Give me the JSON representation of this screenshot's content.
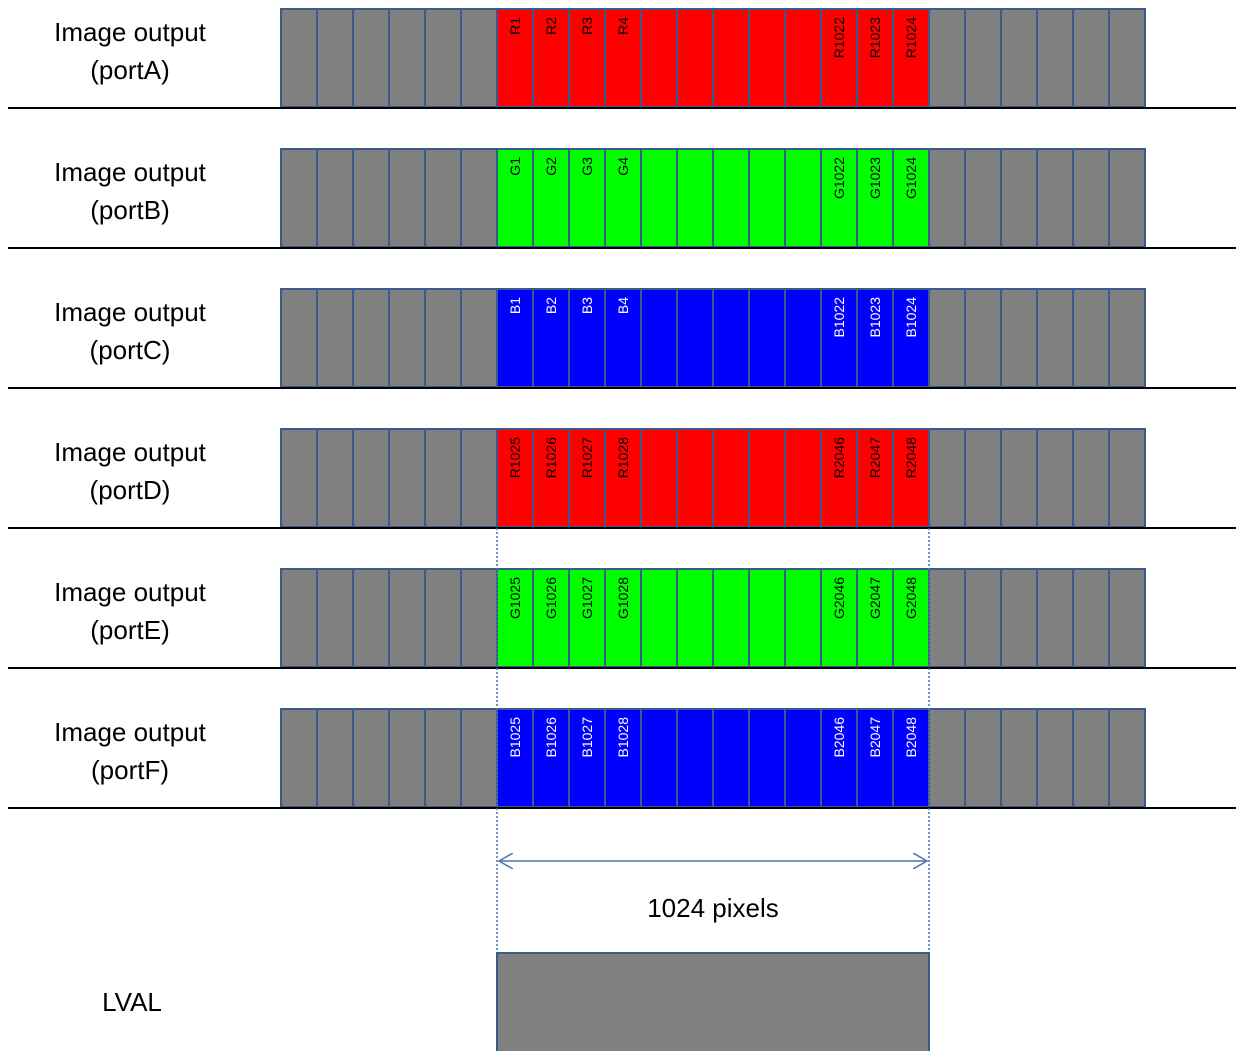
{
  "colors": {
    "inactive": "#808080",
    "red": "#ff0000",
    "green": "#00ff00",
    "blue": "#0000ff",
    "cell_border": "#3a5a8c",
    "guide": "#4f74a8",
    "arrow": "#4f74a8"
  },
  "ports": [
    {
      "label_line1": "Image output",
      "label_line2": "(portA)",
      "color": "red",
      "text_color": "#000000",
      "cell_labels": [
        "R1",
        "R2",
        "R3",
        "R4",
        "",
        "",
        "",
        "",
        "",
        "R1022",
        "R1023",
        "R1024"
      ]
    },
    {
      "label_line1": "Image output",
      "label_line2": "(portB)",
      "color": "green",
      "text_color": "#000000",
      "cell_labels": [
        "G1",
        "G2",
        "G3",
        "G4",
        "",
        "",
        "",
        "",
        "",
        "G1022",
        "G1023",
        "G1024"
      ]
    },
    {
      "label_line1": "Image output",
      "label_line2": "(portC)",
      "color": "blue",
      "text_color": "#ffffff",
      "cell_labels": [
        "B1",
        "B2",
        "B3",
        "B4",
        "",
        "",
        "",
        "",
        "",
        "B1022",
        "B1023",
        "B1024"
      ]
    },
    {
      "label_line1": "Image output",
      "label_line2": "(portD)",
      "color": "red",
      "text_color": "#000000",
      "cell_labels": [
        "R1025",
        "R1026",
        "R1027",
        "R1028",
        "",
        "",
        "",
        "",
        "",
        "R2046",
        "R2047",
        "R2048"
      ]
    },
    {
      "label_line1": "Image output",
      "label_line2": "(portE)",
      "color": "green",
      "text_color": "#000000",
      "cell_labels": [
        "G1025",
        "G1026",
        "G1027",
        "G1028",
        "",
        "",
        "",
        "",
        "",
        "G2046",
        "G2047",
        "G2048"
      ]
    },
    {
      "label_line1": "Image output",
      "label_line2": "(portF)",
      "color": "blue",
      "text_color": "#ffffff",
      "cell_labels": [
        "B1025",
        "B1026",
        "B1027",
        "B1028",
        "",
        "",
        "",
        "",
        "",
        "B2046",
        "B2047",
        "B2048"
      ]
    }
  ],
  "inactive_cells_before": 6,
  "inactive_cells_after": 6,
  "span_label": "1024 pixels",
  "lval_label": "LVAL"
}
